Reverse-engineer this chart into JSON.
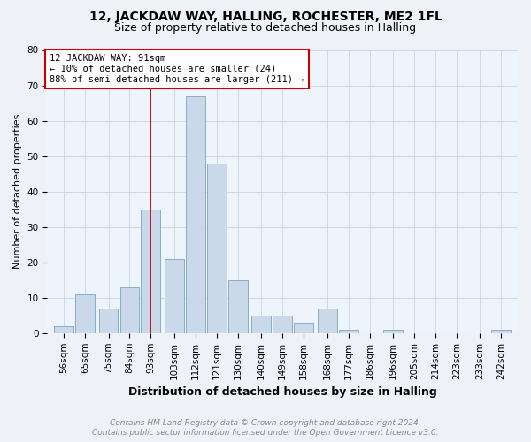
{
  "title": "12, JACKDAW WAY, HALLING, ROCHESTER, ME2 1FL",
  "subtitle": "Size of property relative to detached houses in Halling",
  "xlabel": "Distribution of detached houses by size in Halling",
  "ylabel": "Number of detached properties",
  "bins": [
    56,
    65,
    75,
    84,
    93,
    103,
    112,
    121,
    130,
    140,
    149,
    158,
    168,
    177,
    186,
    196,
    205,
    214,
    223,
    233,
    242
  ],
  "values": [
    2,
    11,
    7,
    13,
    35,
    21,
    67,
    48,
    15,
    5,
    5,
    3,
    7,
    1,
    0,
    1,
    0,
    0,
    0,
    0,
    1
  ],
  "bar_color": "#c9d9ea",
  "bar_edge_color": "#8aaec8",
  "red_line_x": 93,
  "ylim": [
    0,
    80
  ],
  "yticks": [
    0,
    10,
    20,
    30,
    40,
    50,
    60,
    70,
    80
  ],
  "annotation_text": "12 JACKDAW WAY: 91sqm\n← 10% of detached houses are smaller (24)\n88% of semi-detached houses are larger (211) →",
  "annotation_box_color": "white",
  "annotation_box_edge_color": "#cc0000",
  "footer_line1": "Contains HM Land Registry data © Crown copyright and database right 2024.",
  "footer_line2": "Contains public sector information licensed under the Open Government Licence v3.0.",
  "title_fontsize": 10,
  "subtitle_fontsize": 9,
  "xlabel_fontsize": 9,
  "ylabel_fontsize": 8,
  "tick_fontsize": 7.5,
  "annotation_fontsize": 7.5,
  "footer_fontsize": 6.5,
  "bg_color": "#eef2f7"
}
